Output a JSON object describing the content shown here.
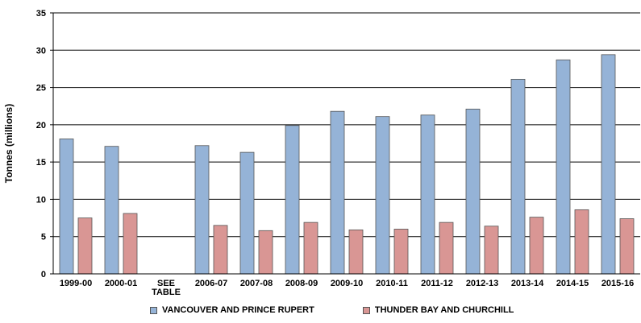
{
  "chart_data": {
    "type": "bar",
    "title": "",
    "xlabel": "",
    "ylabel": "Tonnes (millions)",
    "ylim": [
      0,
      35
    ],
    "yticks": [
      "0",
      "5",
      "10",
      "15",
      "20",
      "25",
      "30",
      "35"
    ],
    "grid": true,
    "legend_position": "bottom",
    "categories": [
      [
        "1999-00"
      ],
      [
        "2000-01"
      ],
      [
        "SEE",
        "TABLE"
      ],
      [
        "2006-07"
      ],
      [
        "2007-08"
      ],
      [
        "2008-09"
      ],
      [
        "2009-10"
      ],
      [
        "2010-11"
      ],
      [
        "2011-12"
      ],
      [
        "2012-13"
      ],
      [
        "2013-14"
      ],
      [
        "2014-15"
      ],
      [
        "2015-16"
      ]
    ],
    "series": [
      {
        "name": "VANCOUVER AND PRINCE RUPERT",
        "color": "#95b3d7",
        "values": [
          18.1,
          17.1,
          null,
          17.2,
          16.3,
          19.9,
          21.8,
          21.1,
          21.3,
          22.1,
          26.1,
          28.7,
          29.4
        ]
      },
      {
        "name": "THUNDER BAY AND CHURCHILL",
        "color": "#d99694",
        "values": [
          7.5,
          8.1,
          null,
          6.5,
          5.8,
          6.9,
          5.9,
          6.0,
          6.9,
          6.4,
          7.6,
          8.6,
          7.4
        ]
      }
    ]
  }
}
